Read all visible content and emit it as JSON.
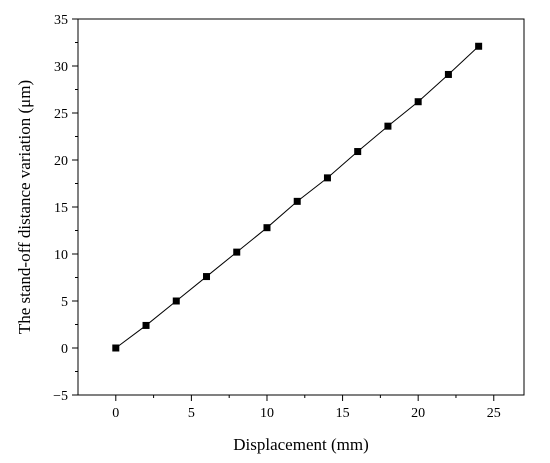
{
  "chart_data": {
    "type": "line",
    "title": "",
    "xlabel": "Displacement (mm)",
    "ylabel": "The stand-off  distance variation (μm)",
    "xlim": [
      -2.5,
      27
    ],
    "ylim": [
      -5,
      35
    ],
    "x_ticks": [
      0,
      5,
      10,
      15,
      20,
      25
    ],
    "y_ticks": [
      -5,
      0,
      5,
      10,
      15,
      20,
      25,
      30,
      35
    ],
    "grid": false,
    "legend": "none",
    "marker": "square",
    "series": [
      {
        "x": [
          0,
          2,
          4,
          6,
          8,
          10,
          12,
          14,
          16,
          18,
          20,
          22,
          24
        ],
        "y": [
          0,
          2.4,
          5.0,
          7.6,
          10.2,
          12.8,
          15.6,
          18.1,
          20.9,
          23.6,
          26.2,
          29.1,
          32.1
        ]
      }
    ],
    "colors": {
      "line": "#000000",
      "marker": "#000000",
      "axis": "#000000"
    }
  }
}
